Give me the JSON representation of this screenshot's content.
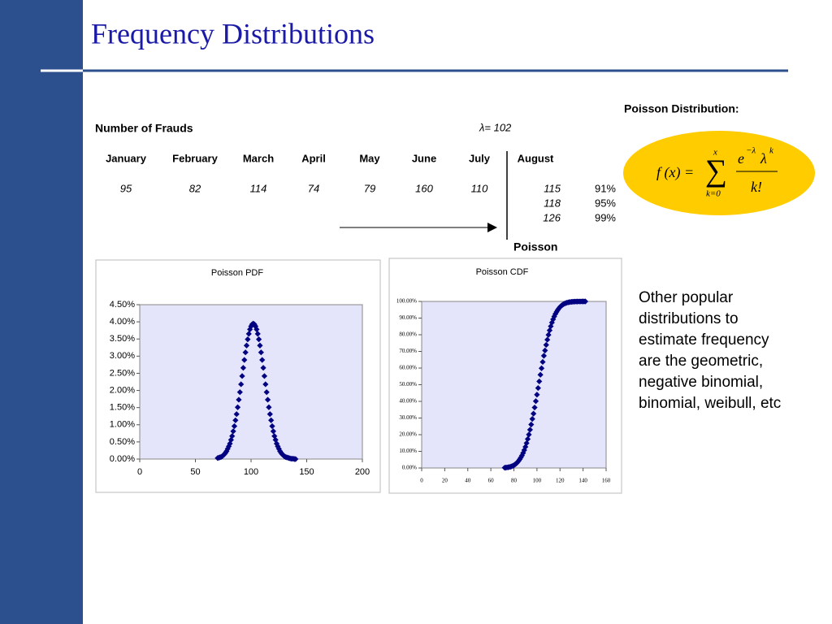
{
  "title": "Frequency Distributions",
  "table": {
    "heading": "Number of Frauds",
    "lambda": "λ= 102",
    "months": [
      "January",
      "February",
      "March",
      "April",
      "May",
      "June",
      "July",
      "August"
    ],
    "counts": [
      "95",
      "82",
      "114",
      "74",
      "79",
      "160",
      "110",
      "115"
    ],
    "august_extra": [
      [
        "118"
      ],
      [
        "126"
      ]
    ],
    "percentiles": [
      "91%",
      "95%",
      "99%"
    ],
    "footer": "Poisson"
  },
  "formula": {
    "heading": "Poisson Distribution:",
    "lhs": "f (x) =",
    "sigma": "∑",
    "upper": "x",
    "lower": "k=0",
    "e": "e",
    "e_exp": "−λ",
    "lam": "λ",
    "lam_exp": "k",
    "denominator": "k!"
  },
  "note_lines": [
    "Other popular",
    "distributions to",
    "estimate frequency",
    "are the geometric,",
    "negative binomial,",
    "binomial, weibull, etc"
  ],
  "chart_data": [
    {
      "type": "scatter",
      "title": "Poisson PDF",
      "color": "#000080",
      "x": [
        70,
        71,
        72,
        73,
        74,
        75,
        76,
        77,
        78,
        79,
        80,
        81,
        82,
        83,
        84,
        85,
        86,
        87,
        88,
        89,
        90,
        91,
        92,
        93,
        94,
        95,
        96,
        97,
        98,
        99,
        100,
        101,
        102,
        103,
        104,
        105,
        106,
        107,
        108,
        109,
        110,
        111,
        112,
        113,
        114,
        115,
        116,
        117,
        118,
        119,
        120,
        121,
        122,
        123,
        124,
        125,
        126,
        127,
        128,
        129,
        130,
        131,
        132,
        133,
        134,
        135,
        136,
        137,
        138,
        139,
        140
      ],
      "values": [
        0.03,
        0.04,
        0.05,
        0.06,
        0.08,
        0.11,
        0.14,
        0.18,
        0.23,
        0.3,
        0.37,
        0.45,
        0.56,
        0.67,
        0.81,
        0.96,
        1.13,
        1.31,
        1.51,
        1.73,
        1.95,
        2.18,
        2.42,
        2.66,
        2.89,
        3.11,
        3.31,
        3.49,
        3.65,
        3.78,
        3.87,
        3.93,
        3.95,
        3.93,
        3.87,
        3.78,
        3.65,
        3.49,
        3.31,
        3.11,
        2.89,
        2.66,
        2.42,
        2.18,
        1.95,
        1.73,
        1.51,
        1.31,
        1.13,
        0.96,
        0.81,
        0.67,
        0.56,
        0.45,
        0.37,
        0.3,
        0.23,
        0.18,
        0.14,
        0.11,
        0.08,
        0.06,
        0.05,
        0.04,
        0.03,
        0.02,
        0.01,
        0.01,
        0.01,
        0.0,
        0.0
      ],
      "xlim": [
        0,
        200
      ],
      "xticks": [
        0,
        50,
        100,
        150,
        200
      ],
      "ylim": [
        0,
        4.5
      ],
      "yticks": [
        {
          "value": 0,
          "label": "0.00%"
        },
        {
          "value": 0.5,
          "label": "0.50%"
        },
        {
          "value": 1,
          "label": "1.00%"
        },
        {
          "value": 1.5,
          "label": "1.50%"
        },
        {
          "value": 2,
          "label": "2.00%"
        },
        {
          "value": 2.5,
          "label": "2.50%"
        },
        {
          "value": 3,
          "label": "3.00%"
        },
        {
          "value": 3.5,
          "label": "3.50%"
        },
        {
          "value": 4,
          "label": "4.00%"
        },
        {
          "value": 4.5,
          "label": "4.50%"
        }
      ]
    },
    {
      "type": "scatter",
      "title": "Poisson CDF",
      "color": "#000080",
      "x": [
        72,
        73,
        74,
        75,
        76,
        77,
        78,
        79,
        80,
        81,
        82,
        83,
        84,
        85,
        86,
        87,
        88,
        89,
        90,
        91,
        92,
        93,
        94,
        95,
        96,
        97,
        98,
        99,
        100,
        101,
        102,
        103,
        104,
        105,
        106,
        107,
        108,
        109,
        110,
        111,
        112,
        113,
        114,
        115,
        116,
        117,
        118,
        119,
        120,
        121,
        122,
        123,
        124,
        125,
        126,
        127,
        128,
        129,
        130,
        131,
        132,
        133,
        134,
        135,
        136,
        137,
        138,
        139,
        140,
        141,
        142
      ],
      "values": [
        0.18,
        0.24,
        0.33,
        0.44,
        0.59,
        0.75,
        0.99,
        1.29,
        1.66,
        2.12,
        2.68,
        3.36,
        4.18,
        5.16,
        6.3,
        7.49,
        9.01,
        10.75,
        12.71,
        14.92,
        17.36,
        20.05,
        22.96,
        26.11,
        29.46,
        32.64,
        36.32,
        40.13,
        44.04,
        48.01,
        51.99,
        55.96,
        59.87,
        63.68,
        67.36,
        70.54,
        73.89,
        77.04,
        79.95,
        82.64,
        85.08,
        87.29,
        89.25,
        90.99,
        92.51,
        93.7,
        94.84,
        95.82,
        96.64,
        97.32,
        97.88,
        98.34,
        98.71,
        99.01,
        99.25,
        99.41,
        99.56,
        99.67,
        99.76,
        99.82,
        99.87,
        99.9,
        99.93,
        99.95,
        99.97,
        99.98,
        99.98,
        99.99,
        99.99,
        99.99,
        100.0
      ],
      "xlim": [
        0,
        160
      ],
      "xticks": [
        0,
        20,
        40,
        60,
        80,
        100,
        120,
        140,
        160
      ],
      "ylim": [
        0,
        100
      ],
      "yticks": [
        {
          "value": 0,
          "label": "0.00%"
        },
        {
          "value": 10,
          "label": "10.00%"
        },
        {
          "value": 20,
          "label": "20.00%"
        },
        {
          "value": 30,
          "label": "30.00%"
        },
        {
          "value": 40,
          "label": "40.00%"
        },
        {
          "value": 50,
          "label": "50.00%"
        },
        {
          "value": 60,
          "label": "60.00%"
        },
        {
          "value": 70,
          "label": "70.00%"
        },
        {
          "value": 80,
          "label": "80.00%"
        },
        {
          "value": 90,
          "label": "90.00%"
        },
        {
          "value": 100,
          "label": "100.00%"
        }
      ]
    }
  ]
}
